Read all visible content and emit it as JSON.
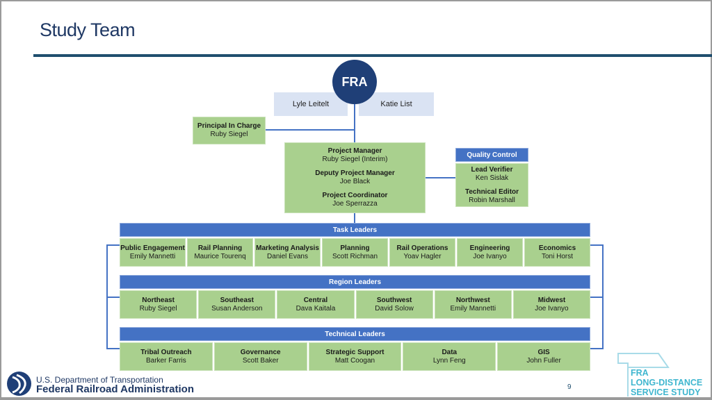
{
  "slide": {
    "title": "Study Team",
    "page_number": "9"
  },
  "top": {
    "fra": "FRA",
    "fra_staff": [
      "Lyle Leitelt",
      "Katie List"
    ]
  },
  "principal": {
    "role": "Principal In Charge",
    "name": "Ruby Siegel"
  },
  "management": [
    {
      "role": "Project Manager",
      "name": "Ruby Siegel (Interim)"
    },
    {
      "role": "Deputy Project Manager",
      "name": "Joe Black"
    },
    {
      "role": "Project Coordinator",
      "name": "Joe Sperrazza"
    }
  ],
  "quality_control": {
    "title": "Quality Control",
    "members": [
      {
        "role": "Lead Verifier",
        "name": "Ken Sislak"
      },
      {
        "role": "Technical Editor",
        "name": "Robin Marshall"
      }
    ]
  },
  "groups": [
    {
      "title": "Task Leaders",
      "members": [
        {
          "role": "Public Engagement",
          "name": "Emily Mannetti"
        },
        {
          "role": "Rail Planning",
          "name": "Maurice Tourenq"
        },
        {
          "role": "Marketing Analysis",
          "name": "Daniel Evans"
        },
        {
          "role": "Planning",
          "name": "Scott Richman"
        },
        {
          "role": "Rail Operations",
          "name": "Yoav Hagler"
        },
        {
          "role": "Engineering",
          "name": "Joe Ivanyo"
        },
        {
          "role": "Economics",
          "name": "Toni Horst"
        }
      ]
    },
    {
      "title": "Region Leaders",
      "members": [
        {
          "role": "Northeast",
          "name": "Ruby Siegel"
        },
        {
          "role": "Southeast",
          "name": "Susan Anderson"
        },
        {
          "role": "Central",
          "name": "Dava Kaitala"
        },
        {
          "role": "Southwest",
          "name": "David Solow"
        },
        {
          "role": "Northwest",
          "name": "Emily Mannetti"
        },
        {
          "role": "Midwest",
          "name": "Joe Ivanyo"
        }
      ]
    },
    {
      "title": "Technical Leaders",
      "members": [
        {
          "role": "Tribal Outreach",
          "name": "Barker Farris"
        },
        {
          "role": "Governance",
          "name": "Scott Baker"
        },
        {
          "role": "Strategic Support",
          "name": "Matt Coogan"
        },
        {
          "role": "Data",
          "name": "Lynn Feng"
        },
        {
          "role": "GIS",
          "name": "John Fuller"
        }
      ]
    }
  ],
  "footer": {
    "dept": "U.S. Department of Transportation",
    "agency": "Federal Railroad Administration",
    "study_logo": [
      "FRA",
      "LONG-DISTANCE",
      "SERVICE STUDY"
    ]
  },
  "colors": {
    "title": "#1f3864",
    "rule": "#1f4e6e",
    "fra_circle": "#1f3f77",
    "header_blue": "#4472c4",
    "box_green": "#a9d08e",
    "box_lightblue": "#dae3f3",
    "study_logo": "#3fb6cf"
  }
}
